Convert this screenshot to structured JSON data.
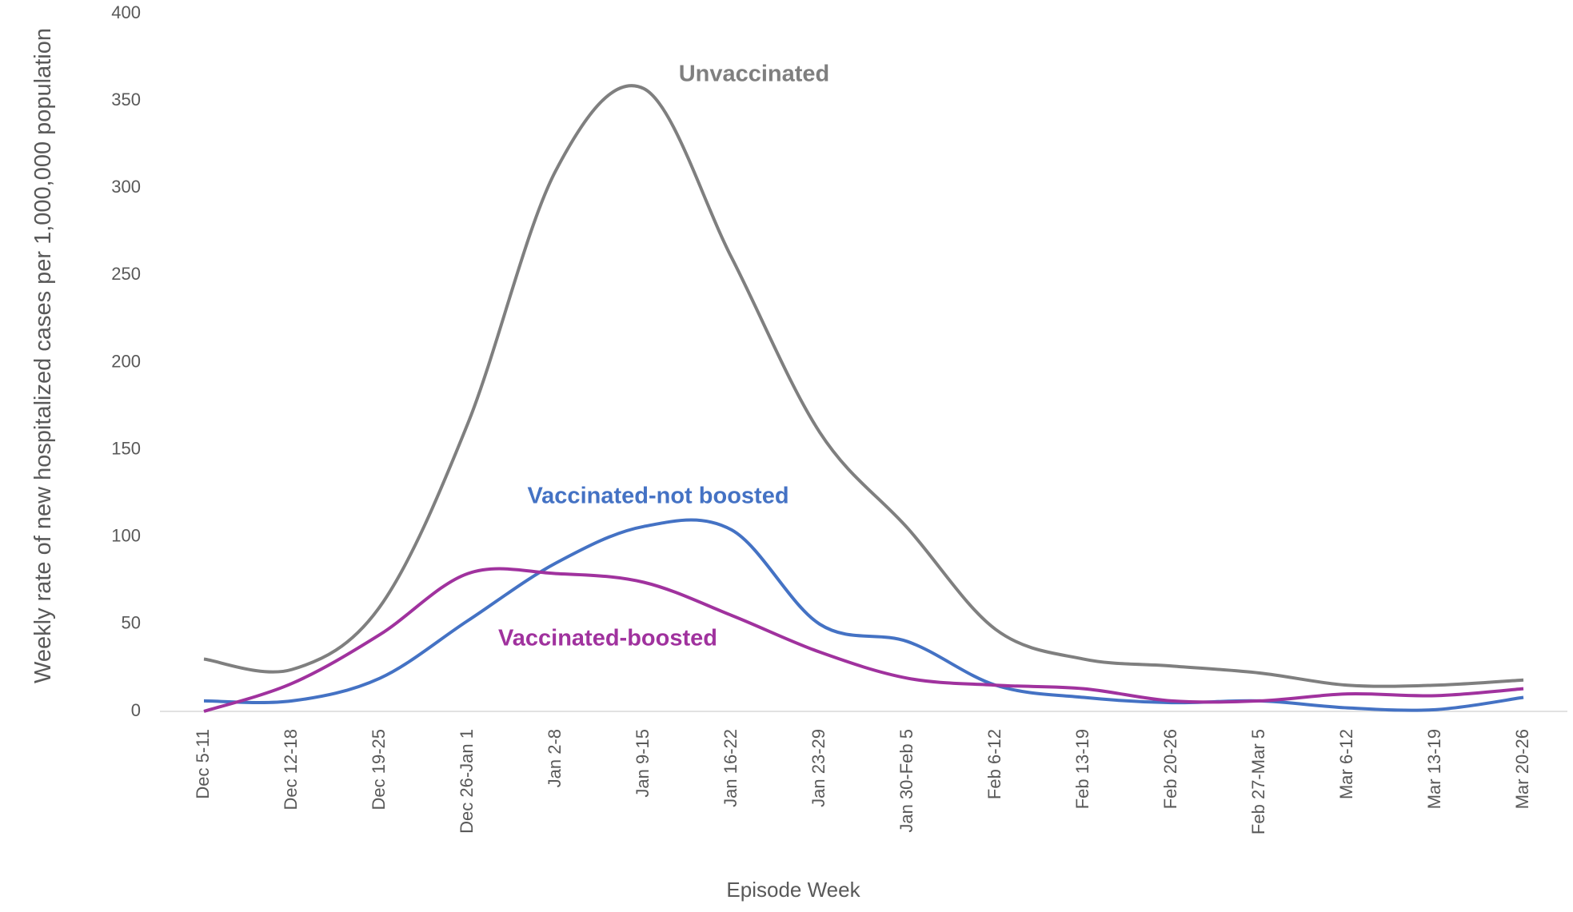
{
  "chart_data": {
    "type": "line",
    "x_label": "Episode Week",
    "y_label": "Weekly rate of new hospitalized cases per 1,000,000 population",
    "categories": [
      "Dec 5-11",
      "Dec 12-18",
      "Dec 19-25",
      "Dec 26-Jan 1",
      "Jan 2-8",
      "Jan 9-15",
      "Jan 16-22",
      "Jan 23-29",
      "Jan 30-Feb 5",
      "Feb 6-12",
      "Feb 13-19",
      "Feb 20-26",
      "Feb 27-Mar 5",
      "Mar 6-12",
      "Mar 13-19",
      "Mar 20-26"
    ],
    "series": [
      {
        "name": "Unvaccinated",
        "color": "#7f7f7f",
        "values": [
          30,
          24,
          60,
          165,
          310,
          357,
          260,
          160,
          105,
          47,
          30,
          26,
          22,
          15,
          15,
          18
        ]
      },
      {
        "name": "Vaccinated-not boosted",
        "color": "#4472c4",
        "values": [
          6,
          6,
          19,
          52,
          85,
          106,
          104,
          50,
          40,
          15,
          8,
          5,
          6,
          2,
          1,
          8
        ]
      },
      {
        "name": "Vaccinated-boosted",
        "color": "#a0329e",
        "values": [
          0,
          16,
          44,
          79,
          79,
          74,
          55,
          34,
          19,
          15,
          13,
          6,
          6,
          10,
          9,
          13
        ]
      }
    ],
    "ylim": [
      0,
      400
    ],
    "yticks": [
      0,
      50,
      100,
      150,
      200,
      250,
      300,
      350,
      400
    ],
    "smooth": true
  }
}
